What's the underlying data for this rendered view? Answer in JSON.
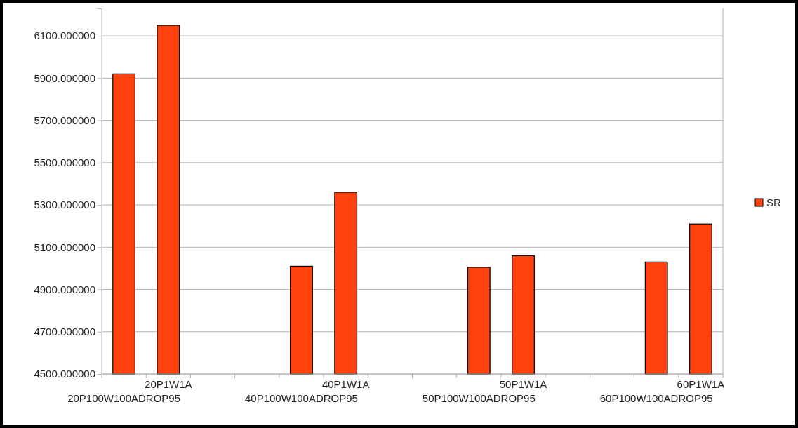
{
  "chart_data": {
    "type": "bar",
    "categories": [
      "20P100W100ADROP95",
      "20P1W1A",
      null,
      null,
      "40P100W100ADROP95",
      "40P1W1A",
      null,
      null,
      "50P100W100ADROP95",
      "50P1W1A",
      null,
      null,
      "60P100W100ADROP95",
      "60P1W1A"
    ],
    "series": [
      {
        "name": "SR",
        "color": "#ff420e",
        "values": [
          5920,
          6150,
          null,
          null,
          5010,
          5360,
          null,
          null,
          5005,
          5060,
          null,
          null,
          5030,
          5210
        ]
      }
    ],
    "ylim": [
      4500,
      6230
    ],
    "yticks": [
      {
        "value": 4500,
        "label": "4500.000000"
      },
      {
        "value": 4700,
        "label": "4700.000000"
      },
      {
        "value": 4900,
        "label": "4900.000000"
      },
      {
        "value": 5100,
        "label": "5100.000000"
      },
      {
        "value": 5300,
        "label": "5300.000000"
      },
      {
        "value": 5500,
        "label": "5500.000000"
      },
      {
        "value": 5700,
        "label": "5700.000000"
      },
      {
        "value": 5900,
        "label": "5900.000000"
      },
      {
        "value": 6100,
        "label": "6100.000000"
      }
    ],
    "grid": "y",
    "legend": "right"
  }
}
